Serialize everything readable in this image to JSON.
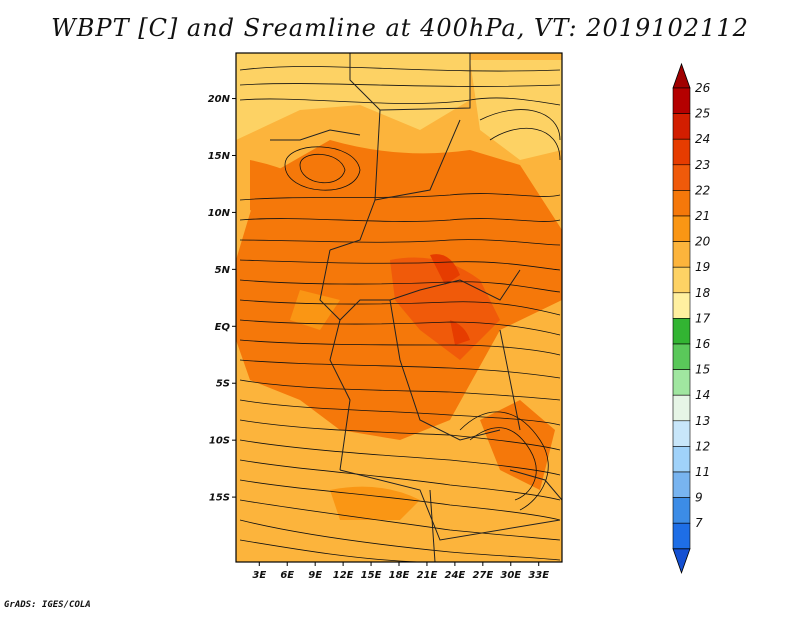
{
  "title": "WBPT [C] and Sreamline at 400hPa, VT: 2019102112",
  "credit": "GrADS: IGES/COLA",
  "map": {
    "variable": "WBPT [C]",
    "level": "400hPa",
    "valid_time": "2019102112",
    "lat_labels": [
      "20N",
      "15N",
      "10N",
      "5N",
      "EQ",
      "5S",
      "10S",
      "15S"
    ],
    "lat_values": [
      20,
      15,
      10,
      5,
      0,
      -5,
      -10,
      -15
    ],
    "lon_labels": [
      "3E",
      "6E",
      "9E",
      "12E",
      "15E",
      "18E",
      "21E",
      "24E",
      "27E",
      "30E",
      "33E"
    ],
    "lon_values": [
      3,
      6,
      9,
      12,
      15,
      18,
      21,
      24,
      27,
      30,
      33
    ]
  },
  "colorbar": {
    "labels": [
      "26",
      "25",
      "24",
      "23",
      "22",
      "21",
      "20",
      "19",
      "18",
      "17",
      "16",
      "15",
      "14",
      "13",
      "12",
      "11",
      "9",
      "7"
    ],
    "colors": [
      "#b40000",
      "#d21e00",
      "#e63c00",
      "#f05a0a",
      "#f5780a",
      "#fa9614",
      "#fcb43c",
      "#fdd264",
      "#fff0a0",
      "#32b432",
      "#5ac85a",
      "#a0e6a0",
      "#e6f5e6",
      "#c8e6fa",
      "#a0d2fa",
      "#78b4f0",
      "#3c8ce6",
      "#1e6ee6",
      "#1450d2"
    ],
    "top_arrow_color": "#a00000",
    "bottom_arrow_color": "#1450d2"
  }
}
